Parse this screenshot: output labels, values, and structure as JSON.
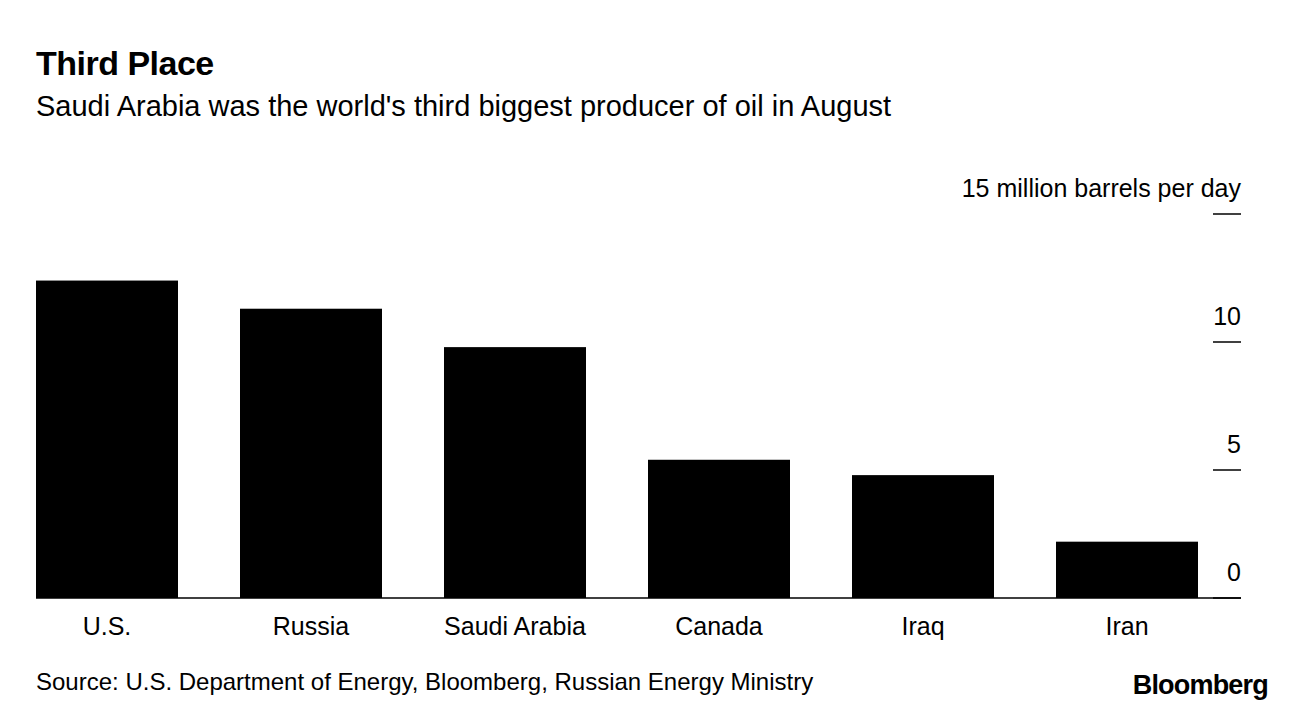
{
  "chart_data": {
    "type": "bar",
    "title": "Third Place",
    "subtitle": "Saudi Arabia was the world's third biggest producer of oil in August",
    "categories": [
      "U.S.",
      "Russia",
      "Saudi Arabia",
      "Canada",
      "Iraq",
      "Iran"
    ],
    "values": [
      12.4,
      11.3,
      9.8,
      5.4,
      4.8,
      2.2
    ],
    "color": "#000000",
    "ylim": [
      0,
      15
    ],
    "yticks": [
      0,
      5,
      10,
      {
        "value": 15,
        "label": "15 million barrels per day"
      }
    ],
    "grid": false,
    "source": "Source: U.S. Department of Energy, Bloomberg, Russian Energy Ministry",
    "brand": "Bloomberg"
  }
}
